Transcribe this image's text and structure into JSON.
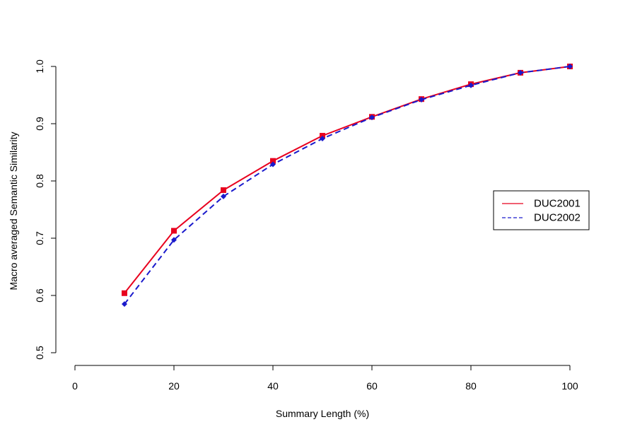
{
  "chart_data": {
    "type": "line",
    "title": "",
    "xlabel": "Summary Length (%)",
    "ylabel": "Macro averaged Semantic Similarity",
    "xlim": [
      0,
      100
    ],
    "ylim": [
      0.5,
      1.0
    ],
    "xticks": [
      0,
      20,
      40,
      60,
      80,
      100
    ],
    "yticks": [
      0.5,
      0.6,
      0.7,
      0.8,
      0.9,
      1.0
    ],
    "xtick_labels": [
      "0",
      "20",
      "40",
      "60",
      "80",
      "100"
    ],
    "ytick_labels": [
      "0.5",
      "0.6",
      "0.7",
      "0.8",
      "0.9",
      "1.0"
    ],
    "grid": false,
    "legend_position": "right",
    "x": [
      10,
      20,
      30,
      40,
      50,
      60,
      70,
      80,
      90,
      100
    ],
    "series": [
      {
        "name": "DUC2001",
        "color": "#e8001e",
        "line_style": "solid",
        "marker": "square",
        "values": [
          0.604,
          0.713,
          0.784,
          0.835,
          0.879,
          0.912,
          0.943,
          0.969,
          0.989,
          1.0
        ]
      },
      {
        "name": "DUC2002",
        "color": "#1a1acc",
        "line_style": "dashed",
        "marker": "diamond",
        "values": [
          0.585,
          0.697,
          0.773,
          0.829,
          0.874,
          0.911,
          0.942,
          0.967,
          0.989,
          1.0
        ]
      }
    ]
  }
}
